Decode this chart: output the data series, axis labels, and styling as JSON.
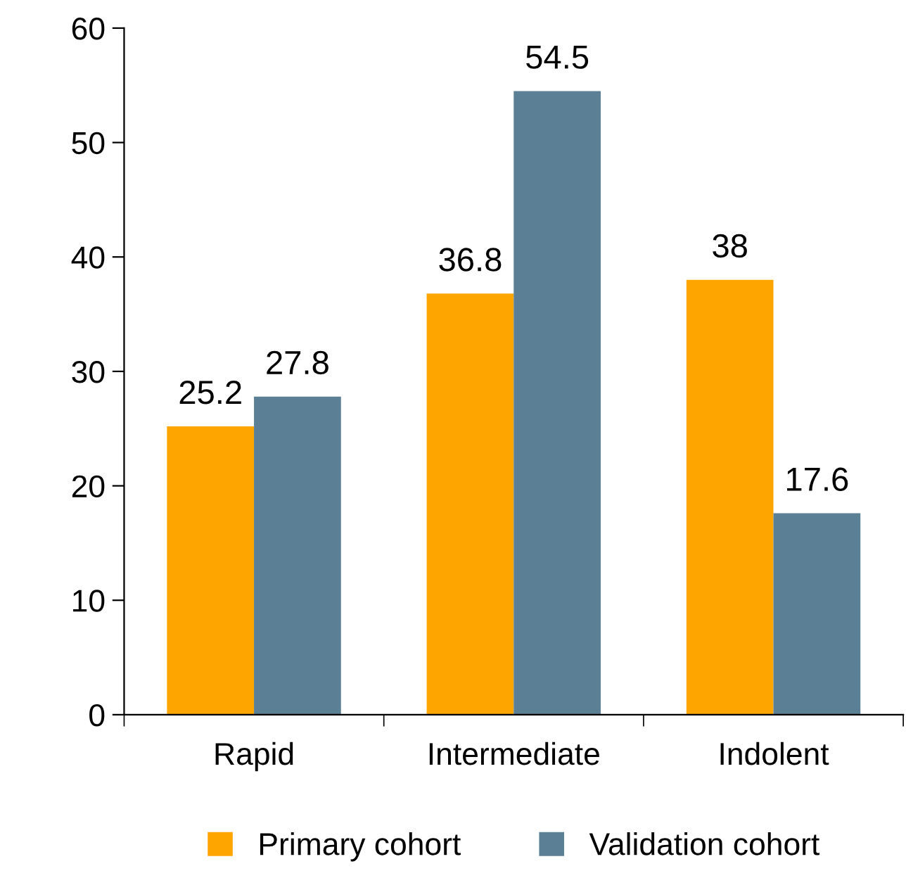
{
  "chart_data": {
    "type": "bar",
    "categories": [
      "Rapid",
      "Intermediate",
      "Indolent"
    ],
    "series": [
      {
        "name": "Primary cohort",
        "color": "#ffa500",
        "values": [
          25.2,
          36.8,
          38
        ]
      },
      {
        "name": "Validation cohort",
        "color": "#5b7f95",
        "values": [
          27.8,
          54.5,
          17.6
        ]
      }
    ],
    "ylim": [
      0,
      60
    ],
    "yticks": [
      0,
      10,
      20,
      30,
      40,
      50,
      60
    ],
    "data_labels": true,
    "grid": false,
    "legend": "bottom"
  }
}
